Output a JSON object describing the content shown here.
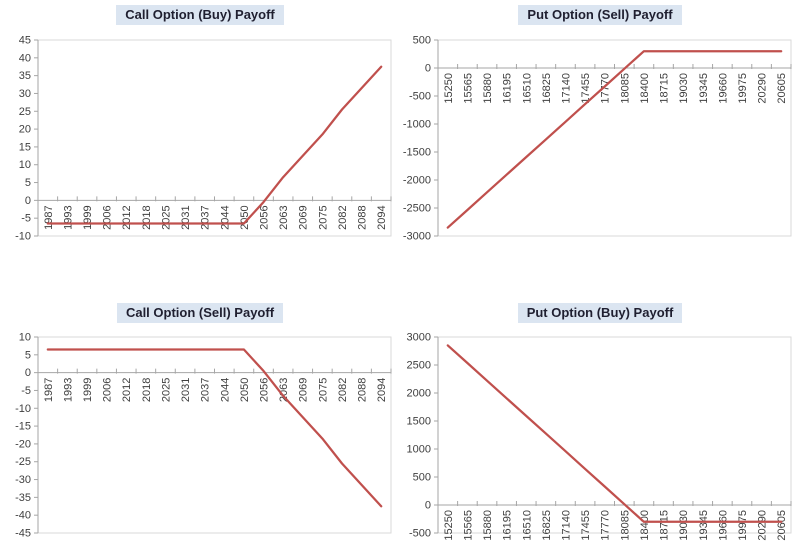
{
  "style": {
    "background": "#FFFFFF",
    "line_color": "#C0504D",
    "title_bg": "#DBE5F1",
    "title_color": "#1F1F30",
    "axis_color": "#A6A6A6",
    "plot_border_color": "#D9D9D9",
    "tick_label_color": "#3F3F3F"
  },
  "chart_data": [
    {
      "id": "call-option-buy-payoff",
      "type": "line",
      "title": "Call Option (Buy) Payoff",
      "legend": false,
      "grid": false,
      "categories": [
        "1987",
        "1993",
        "1999",
        "2006",
        "2012",
        "2018",
        "2025",
        "2031",
        "2037",
        "2044",
        "2050",
        "2056",
        "2063",
        "2069",
        "2075",
        "2082",
        "2088",
        "2094"
      ],
      "values": [
        -6.5,
        -6.5,
        -6.5,
        -6.5,
        -6.5,
        -6.5,
        -6.5,
        -6.5,
        -6.5,
        -6.5,
        -6.5,
        -0.5,
        6.5,
        12.5,
        18.5,
        25.5,
        31.5,
        37.5
      ],
      "ylim": [
        -10,
        45
      ],
      "yticks": [
        45,
        40,
        35,
        30,
        25,
        20,
        15,
        10,
        5,
        0,
        -5,
        -10
      ]
    },
    {
      "id": "put-option-sell-payoff",
      "type": "line",
      "title": "Put Option (Sell) Payoff",
      "legend": false,
      "grid": false,
      "categories": [
        "15250",
        "15565",
        "15880",
        "16195",
        "16510",
        "16825",
        "17140",
        "17455",
        "17770",
        "18085",
        "18400",
        "18715",
        "19030",
        "19345",
        "19660",
        "19975",
        "20290",
        "20605"
      ],
      "values": [
        -2850,
        -2535,
        -2220,
        -1905,
        -1590,
        -1275,
        -960,
        -645,
        -330,
        -15,
        300,
        300,
        300,
        300,
        300,
        300,
        300,
        300
      ],
      "ylim": [
        -3000,
        500
      ],
      "yticks": [
        500,
        0,
        -500,
        -1000,
        -1500,
        -2000,
        -2500,
        -3000
      ]
    },
    {
      "id": "call-option-sell-payoff",
      "type": "line",
      "title": "Call Option (Sell) Payoff",
      "legend": false,
      "grid": false,
      "categories": [
        "1987",
        "1993",
        "1999",
        "2006",
        "2012",
        "2018",
        "2025",
        "2031",
        "2037",
        "2044",
        "2050",
        "2056",
        "2063",
        "2069",
        "2075",
        "2082",
        "2088",
        "2094"
      ],
      "values": [
        6.5,
        6.5,
        6.5,
        6.5,
        6.5,
        6.5,
        6.5,
        6.5,
        6.5,
        6.5,
        6.5,
        0.5,
        -6.5,
        -12.5,
        -18.5,
        -25.5,
        -31.5,
        -37.5
      ],
      "ylim": [
        -45,
        10
      ],
      "yticks": [
        10,
        5,
        0,
        -5,
        -10,
        -15,
        -20,
        -25,
        -30,
        -35,
        -40,
        -45
      ]
    },
    {
      "id": "put-option-buy-payoff",
      "type": "line",
      "title": "Put Option (Buy) Payoff",
      "legend": false,
      "grid": false,
      "categories": [
        "15250",
        "15565",
        "15880",
        "16195",
        "16510",
        "16825",
        "17140",
        "17455",
        "17770",
        "18085",
        "18400",
        "18715",
        "19030",
        "19345",
        "19660",
        "19975",
        "20290",
        "20605"
      ],
      "values": [
        2850,
        2535,
        2220,
        1905,
        1590,
        1275,
        960,
        645,
        330,
        15,
        -300,
        -300,
        -300,
        -300,
        -300,
        -300,
        -300,
        -300
      ],
      "ylim": [
        -500,
        3000
      ],
      "yticks": [
        3000,
        2500,
        2000,
        1500,
        1000,
        500,
        0,
        -500
      ]
    }
  ]
}
